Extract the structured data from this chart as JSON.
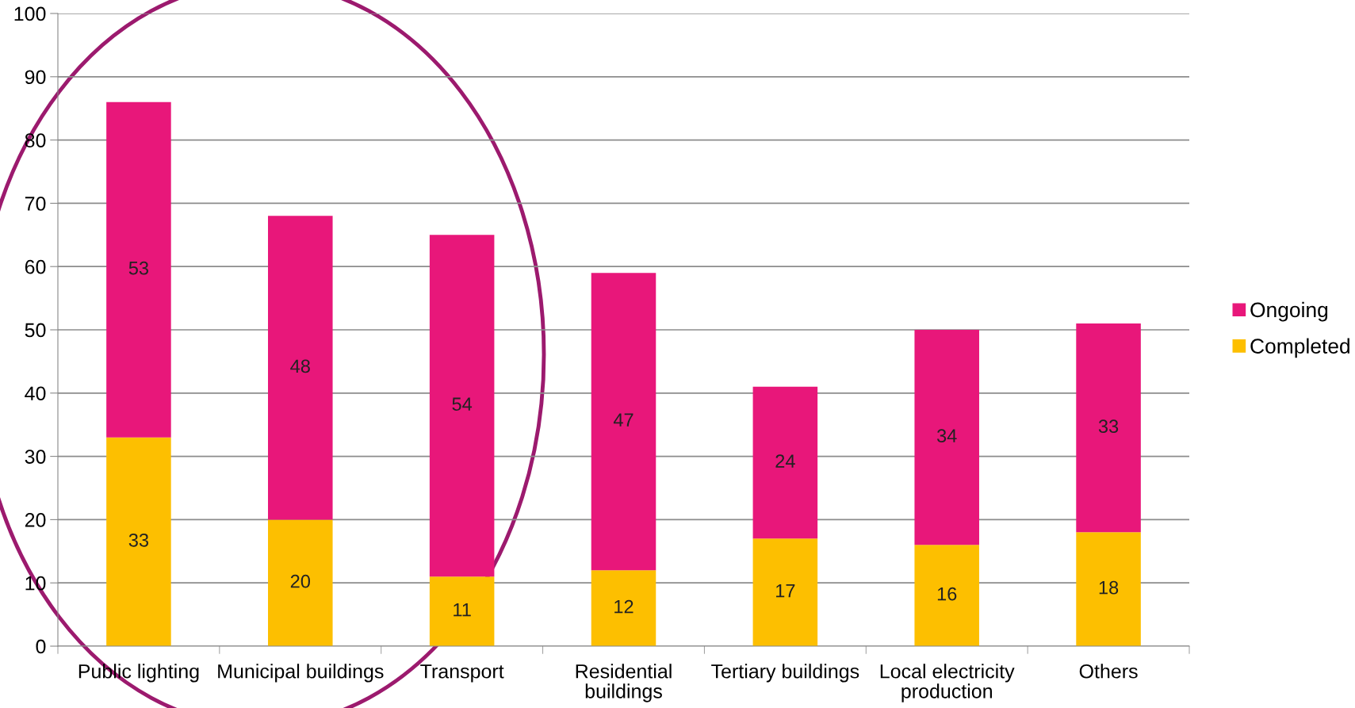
{
  "chart_data": {
    "type": "bar",
    "stacked": true,
    "categories": [
      "Public lighting",
      "Municipal buildings",
      "Transport",
      "Residential buildings",
      "Tertiary buildings",
      "Local electricity production",
      "Others"
    ],
    "series": [
      {
        "name": "Completed",
        "color": "#fdbf00",
        "values": [
          33,
          20,
          11,
          12,
          17,
          16,
          18
        ]
      },
      {
        "name": "Ongoing",
        "color": "#e8177a",
        "values": [
          53,
          48,
          54,
          47,
          24,
          34,
          33
        ]
      }
    ],
    "ylim": [
      0,
      100
    ],
    "yticks": [
      0,
      10,
      20,
      30,
      40,
      50,
      60,
      70,
      80,
      90,
      100
    ],
    "grid": "y",
    "legend": "right",
    "data_labels": true
  }
}
